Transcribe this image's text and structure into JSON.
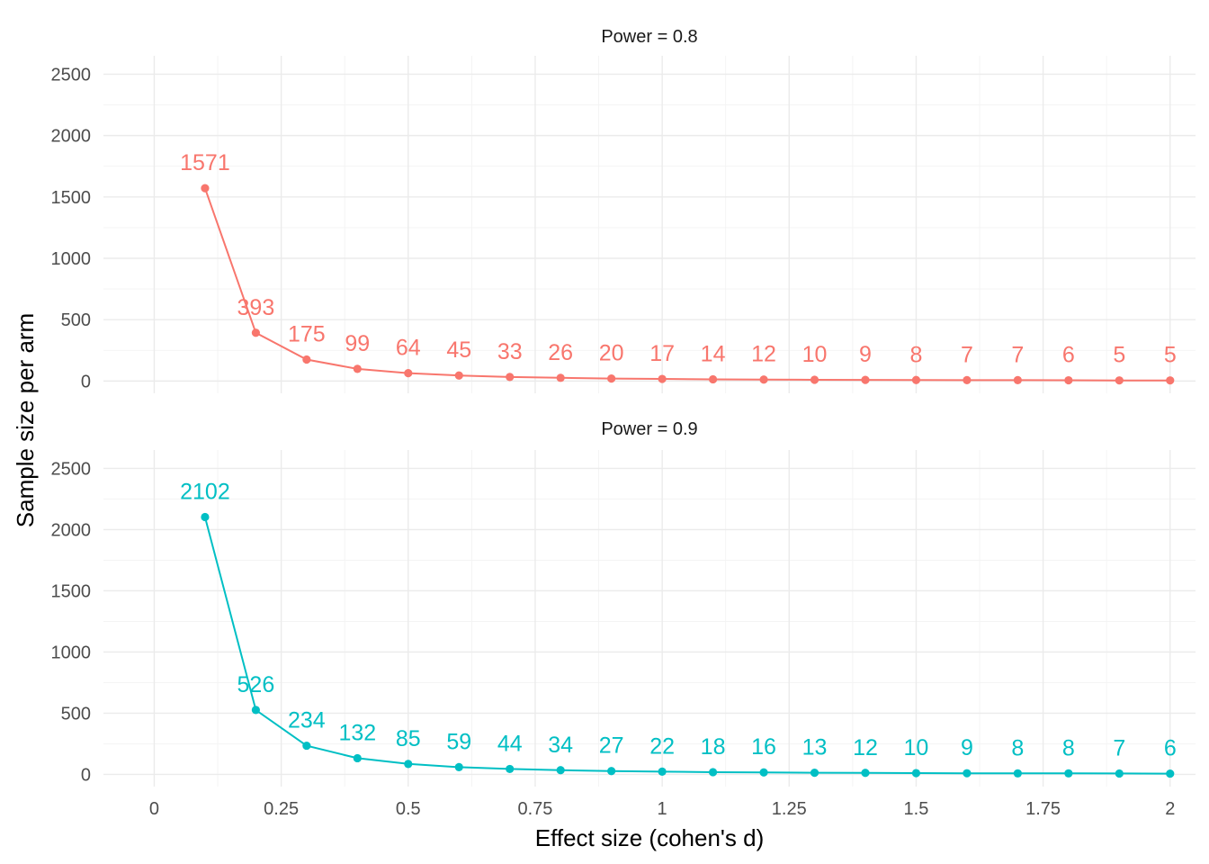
{
  "chart_data": {
    "type": "line",
    "xlabel": "Effect size (cohen's d)",
    "ylabel": "Sample size per arm",
    "xlim": [
      -0.1,
      2.05
    ],
    "ylim": [
      -100,
      2650
    ],
    "x_ticks": [
      0,
      0.25,
      0.5,
      0.75,
      1,
      1.25,
      1.5,
      1.75,
      2
    ],
    "x_tick_labels": [
      "0",
      "0.25",
      "0.5",
      "0.75",
      "1",
      "1.25",
      "1.5",
      "1.75",
      "2"
    ],
    "y_ticks": [
      0,
      500,
      1000,
      1500,
      2000,
      2500
    ],
    "y_tick_labels": [
      "0",
      "500",
      "1000",
      "1500",
      "2000",
      "2500"
    ],
    "grid": true,
    "legend": "none",
    "x": [
      0.1,
      0.2,
      0.3,
      0.4,
      0.5,
      0.6,
      0.7,
      0.8,
      0.9,
      1.0,
      1.1,
      1.2,
      1.3,
      1.4,
      1.5,
      1.6,
      1.7,
      1.8,
      1.9,
      2.0
    ],
    "panels": [
      {
        "strip_label": "Power = 0.8",
        "color": "#F8766D",
        "values": [
          1571,
          393,
          175,
          99,
          64,
          45,
          33,
          26,
          20,
          17,
          14,
          12,
          10,
          9,
          8,
          7,
          7,
          6,
          5,
          5
        ]
      },
      {
        "strip_label": "Power = 0.9",
        "color": "#00BFC4",
        "values": [
          2102,
          526,
          234,
          132,
          85,
          59,
          44,
          34,
          27,
          22,
          18,
          16,
          13,
          12,
          10,
          9,
          8,
          8,
          7,
          6
        ]
      }
    ]
  }
}
